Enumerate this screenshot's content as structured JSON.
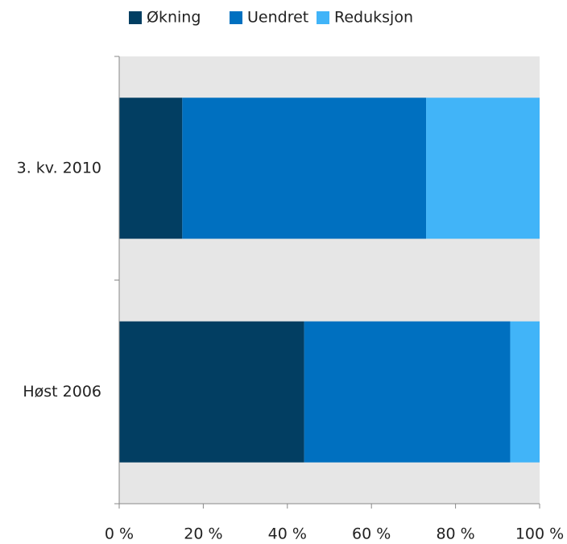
{
  "chart_data": {
    "type": "stacked-horizontal-bar",
    "categories": [
      "3. kv. 2010",
      "Høst 2006"
    ],
    "series": [
      {
        "name": "Økning",
        "color": "#023e62",
        "values": [
          15,
          44
        ]
      },
      {
        "name": "Uendret",
        "color": "#0070c0",
        "values": [
          58,
          49
        ]
      },
      {
        "name": "Reduksjon",
        "color": "#41b4f8",
        "values": [
          27,
          7
        ]
      }
    ],
    "xlim": [
      0,
      100
    ],
    "xticks": [
      {
        "value": 0,
        "label": "0 %"
      },
      {
        "value": 20,
        "label": "20 %"
      },
      {
        "value": 40,
        "label": "40 %"
      },
      {
        "value": 60,
        "label": "60 %"
      },
      {
        "value": 80,
        "label": "80 %"
      },
      {
        "value": 100,
        "label": "100 %"
      }
    ],
    "legend": "top"
  }
}
